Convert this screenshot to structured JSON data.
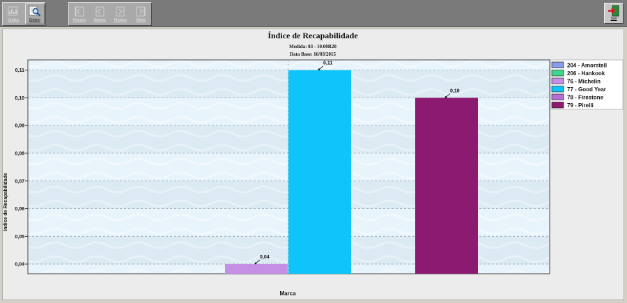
{
  "toolbar": {
    "nav": [
      {
        "label": "Gráfico",
        "enabled": false,
        "icon": "chart-icon"
      },
      {
        "label": "Critério",
        "enabled": true,
        "icon": "magnifier-icon"
      }
    ],
    "records": [
      {
        "label": "Primeiro",
        "icon": "first-record-icon"
      },
      {
        "label": "Anterior",
        "icon": "previous-record-icon"
      },
      {
        "label": "Próximo",
        "icon": "next-record-icon"
      },
      {
        "label": "Último",
        "icon": "last-record-icon"
      }
    ],
    "exit_label": "Sair"
  },
  "chart": {
    "title": "Índice de Recapabilidade",
    "subtitle1": "Medida: 83 - 10.00R20",
    "subtitle2": "Data Base: 16/03/2015",
    "xlabel": "Marca",
    "ylabel": "Índice de Recapabilidade"
  },
  "colors": {
    "bg": "#e8f4fb",
    "band": "#dbeaf3"
  },
  "chart_data": {
    "type": "bar",
    "title": "Índice de Recapabilidade",
    "subtitle": [
      "Medida: 83 - 10.00R20",
      "Data Base: 16/03/2015"
    ],
    "xlabel": "Marca",
    "ylabel": "Índice de Recapabilidade",
    "ylim": [
      0.0365,
      0.1137
    ],
    "yticks": [
      0.04,
      0.05,
      0.06,
      0.07,
      0.08,
      0.09,
      0.1,
      0.11
    ],
    "ytick_labels": [
      "0,04",
      "0,05",
      "0,06",
      "0,07",
      "0,08",
      "0,09",
      "0,10",
      "0,11"
    ],
    "grid": true,
    "legend_position": "right",
    "series": [
      {
        "name": "204 - Amorstell",
        "value": null,
        "label": "",
        "color": "#8a9be8"
      },
      {
        "name": "206 - Hankook",
        "value": null,
        "label": "",
        "color": "#3dd68c"
      },
      {
        "name": "76 - Michelin",
        "value": 0.04,
        "label": "0,04",
        "color": "#c58fe6"
      },
      {
        "name": "77 - Good Year",
        "value": 0.11,
        "label": "0,11",
        "color": "#0ec4f9"
      },
      {
        "name": "78 - Firestone",
        "value": null,
        "label": "",
        "color": "#b46fd2"
      },
      {
        "name": "79 - Pirelli",
        "value": 0.1,
        "label": "0,10",
        "color": "#8b1a70"
      }
    ]
  }
}
